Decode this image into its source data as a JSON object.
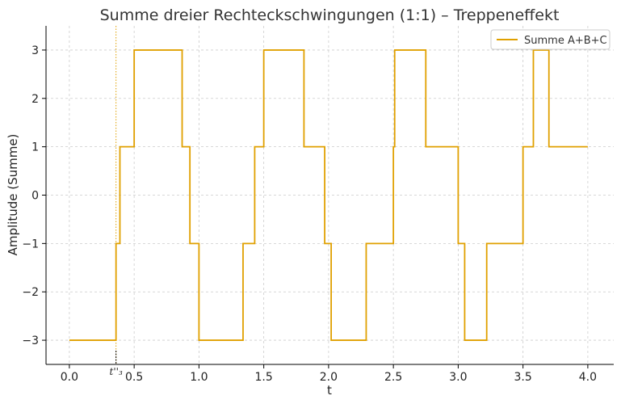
{
  "chart_data": {
    "type": "line",
    "title": "Summe dreier Rechteckschwingungen (1:1) – Treppeneffekt",
    "xlabel": "t",
    "ylabel": "Amplitude (Summe)",
    "xlim": [
      -0.18,
      4.2
    ],
    "ylim": [
      -3.5,
      3.5
    ],
    "xticks": [
      0.0,
      0.5,
      1.0,
      1.5,
      2.0,
      2.5,
      3.0,
      3.5,
      4.0
    ],
    "xtick_labels": [
      "0.0",
      "0.5",
      "1.0",
      "1.5",
      "2.0",
      "2.5",
      "3.0",
      "3.5",
      "4.0"
    ],
    "yticks": [
      -3,
      -2,
      -1,
      0,
      1,
      2,
      3
    ],
    "ytick_labels": [
      "−3",
      "−2",
      "−1",
      "0",
      "1",
      "2",
      "3"
    ],
    "grid": true,
    "legend_position": "top-right",
    "series": [
      {
        "name": "Summe A+B+C",
        "color": "#E0A000",
        "step": true,
        "x": [
          0.0,
          0.36,
          0.39,
          0.5,
          0.87,
          0.89,
          0.93,
          1.0,
          1.34,
          1.43,
          1.5,
          1.81,
          1.97,
          1.99,
          2.02,
          2.29,
          2.5,
          2.51,
          2.75,
          3.0,
          3.03,
          3.05,
          3.22,
          3.5,
          3.58,
          3.7,
          4.0
        ],
        "y": [
          -3,
          -1,
          1,
          3,
          1,
          1,
          -1,
          -3,
          -1,
          1,
          3,
          1,
          -1,
          -1,
          -3,
          -1,
          1,
          3,
          1,
          -1,
          -1,
          -3,
          -1,
          1,
          3,
          1,
          1
        ]
      }
    ],
    "annotations": [
      {
        "type": "vline",
        "x": 0.36,
        "color": "#E0A000",
        "style": "dotted"
      },
      {
        "type": "tick-mark",
        "x": 0.36,
        "label": "t''₃"
      }
    ]
  }
}
